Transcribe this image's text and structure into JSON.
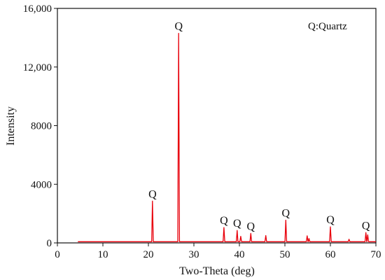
{
  "chart_data": {
    "type": "line",
    "title": "",
    "xlabel": "Two-Theta (deg)",
    "ylabel": "Intensity",
    "xlim": [
      0,
      70
    ],
    "ylim": [
      0,
      16000
    ],
    "x_ticks": [
      0,
      10,
      20,
      30,
      40,
      50,
      60,
      70
    ],
    "y_ticks": [
      0,
      4000,
      8000,
      12000,
      16000
    ],
    "x_tick_labels": [
      "0",
      "10",
      "20",
      "30",
      "40",
      "50",
      "60",
      "70"
    ],
    "y_tick_labels": [
      "0",
      "4000",
      "8000",
      "12,000",
      "16,000"
    ],
    "grid": false,
    "legend_text": "Q:Quartz",
    "legend_position": "top-right",
    "line_color": "#e8000b",
    "baseline": {
      "x_start": 4.5,
      "x_end": 70,
      "y": 80
    },
    "peaks": [
      {
        "x": 20.9,
        "y": 2850,
        "label": "Q"
      },
      {
        "x": 26.65,
        "y": 14300,
        "label": "Q"
      },
      {
        "x": 36.6,
        "y": 1050,
        "label": "Q"
      },
      {
        "x": 39.5,
        "y": 850,
        "label": "Q"
      },
      {
        "x": 40.3,
        "y": 450,
        "label": ""
      },
      {
        "x": 42.5,
        "y": 650,
        "label": "Q"
      },
      {
        "x": 45.8,
        "y": 500,
        "label": ""
      },
      {
        "x": 50.2,
        "y": 1550,
        "label": "Q"
      },
      {
        "x": 54.9,
        "y": 480,
        "label": ""
      },
      {
        "x": 55.3,
        "y": 300,
        "label": ""
      },
      {
        "x": 60.0,
        "y": 1100,
        "label": "Q"
      },
      {
        "x": 64.1,
        "y": 250,
        "label": ""
      },
      {
        "x": 67.8,
        "y": 700,
        "label": "Q"
      },
      {
        "x": 68.2,
        "y": 550,
        "label": ""
      }
    ]
  }
}
